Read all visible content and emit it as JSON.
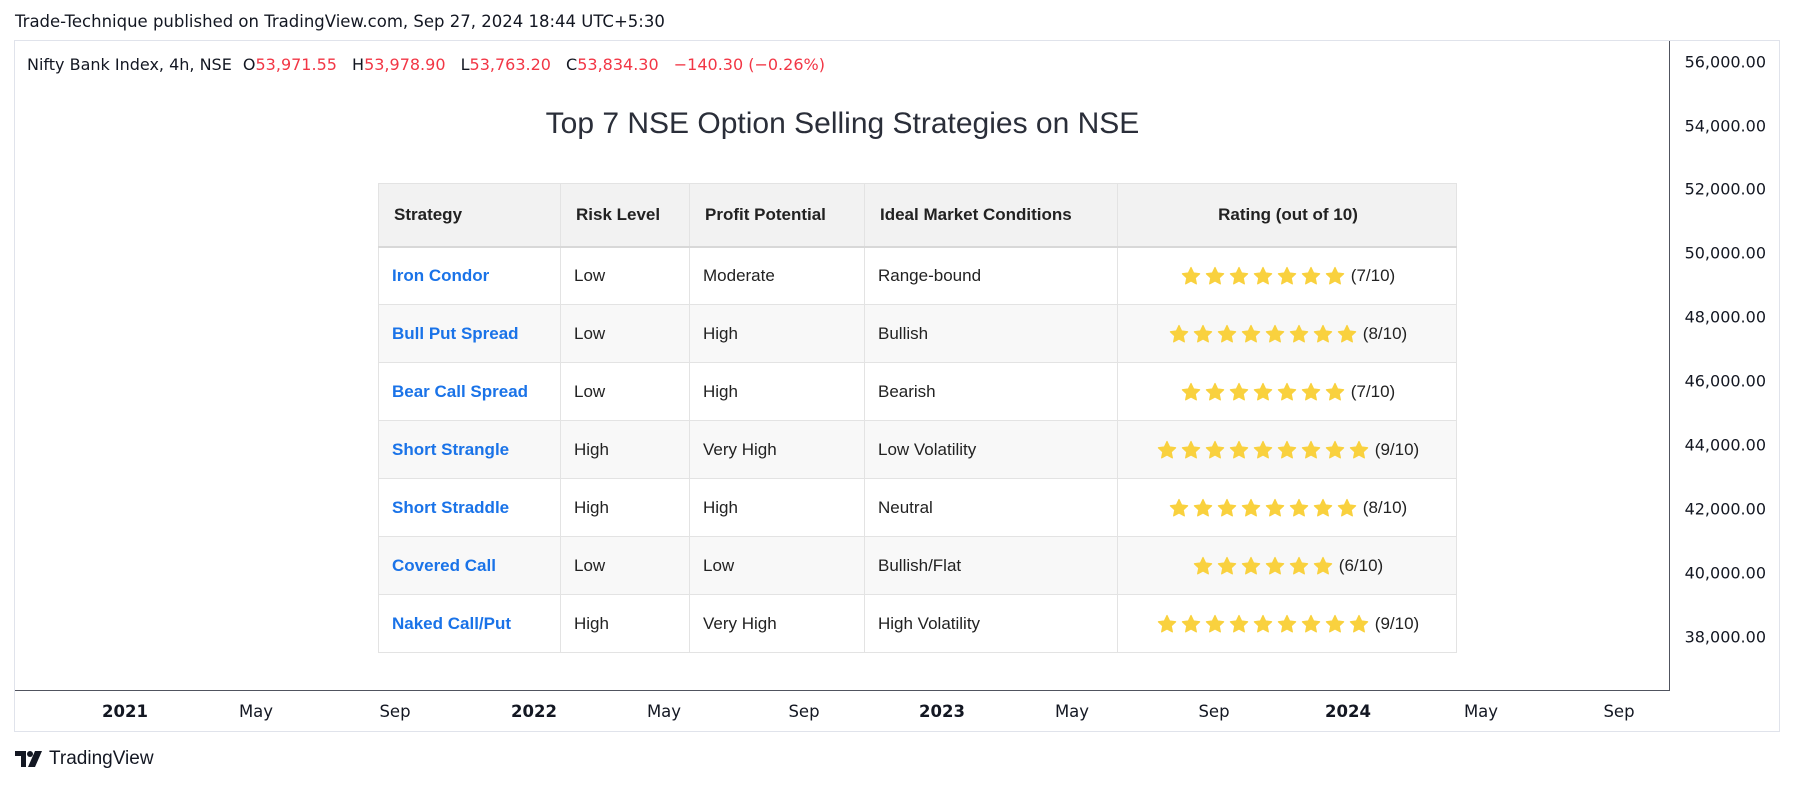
{
  "header": {
    "published_line": "Trade-Technique published on TradingView.com, Sep 27, 2024 18:44 UTC+5:30"
  },
  "legend": {
    "symbol": "Nifty Bank Index, 4h, NSE",
    "open_key": "O",
    "open": "53,971.55",
    "high_key": "H",
    "high": "53,978.90",
    "low_key": "L",
    "low": "53,763.20",
    "close_key": "C",
    "close": "53,834.30",
    "change": "−140.30 (−0.26%)"
  },
  "title": "Top 7 NSE Option Selling Strategies on NSE",
  "table": {
    "headers": [
      "Strategy",
      "Risk Level",
      "Profit Potential",
      "Ideal Market Conditions",
      "Rating (out of 10)"
    ],
    "rows": [
      {
        "strategy": "Iron Condor",
        "risk": "Low",
        "profit": "Moderate",
        "market": "Range-bound",
        "stars": 7,
        "rating": "(7/10)"
      },
      {
        "strategy": "Bull Put Spread",
        "risk": "Low",
        "profit": "High",
        "market": "Bullish",
        "stars": 8,
        "rating": "(8/10)"
      },
      {
        "strategy": "Bear Call Spread",
        "risk": "Low",
        "profit": "High",
        "market": "Bearish",
        "stars": 7,
        "rating": "(7/10)"
      },
      {
        "strategy": "Short Strangle",
        "risk": "High",
        "profit": "Very High",
        "market": "Low Volatility",
        "stars": 9,
        "rating": "(9/10)"
      },
      {
        "strategy": "Short Straddle",
        "risk": "High",
        "profit": "High",
        "market": "Neutral",
        "stars": 8,
        "rating": "(8/10)"
      },
      {
        "strategy": "Covered Call",
        "risk": "Low",
        "profit": "Low",
        "market": "Bullish/Flat",
        "stars": 6,
        "rating": "(6/10)"
      },
      {
        "strategy": "Naked Call/Put",
        "risk": "High",
        "profit": "Very High",
        "market": "High Volatility",
        "stars": 9,
        "rating": "(9/10)"
      }
    ],
    "star_color": "#f9d13e",
    "link_color": "#1a73e8"
  },
  "price_axis": {
    "ticks": [
      "56,000.00",
      "54,000.00",
      "52,000.00",
      "50,000.00",
      "48,000.00",
      "46,000.00",
      "44,000.00",
      "42,000.00",
      "40,000.00",
      "38,000.00"
    ]
  },
  "time_axis": {
    "ticks": [
      {
        "label": "2021",
        "major": true
      },
      {
        "label": "May",
        "major": false
      },
      {
        "label": "Sep",
        "major": false
      },
      {
        "label": "2022",
        "major": true
      },
      {
        "label": "May",
        "major": false
      },
      {
        "label": "Sep",
        "major": false
      },
      {
        "label": "2023",
        "major": true
      },
      {
        "label": "May",
        "major": false
      },
      {
        "label": "Sep",
        "major": false
      },
      {
        "label": "2024",
        "major": true
      },
      {
        "label": "May",
        "major": false
      },
      {
        "label": "Sep",
        "major": false
      }
    ]
  },
  "footer": {
    "brand": "TradingView",
    "logo_icon": "tradingview-logo-icon"
  },
  "colors": {
    "negative": "#f23645",
    "axis_line": "#50535e"
  }
}
